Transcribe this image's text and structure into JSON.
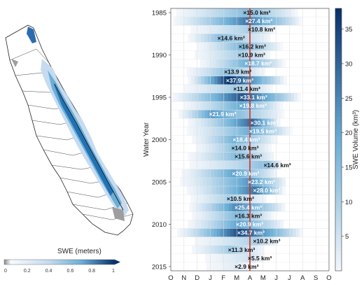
{
  "map_legend": {
    "title": "SWE (meters)",
    "ticks": [
      "0",
      "0.2",
      "0.4",
      "0.6",
      "0.8",
      "1"
    ]
  },
  "chart_data": {
    "type": "heatmap",
    "ylabel": "Water Year",
    "colorbar_label": "SWE Volume (km³)",
    "colorbar_ticks": [
      5,
      10,
      15,
      20,
      25,
      30,
      35
    ],
    "colorbar_range": [
      0,
      38
    ],
    "months": [
      "O",
      "N",
      "D",
      "J",
      "F",
      "M",
      "A",
      "M",
      "J",
      "J",
      "A",
      "S",
      "O"
    ],
    "year_ticks": [
      1985,
      1990,
      1995,
      2000,
      2005,
      2010,
      2015
    ],
    "year_range": [
      1985,
      2015
    ],
    "reference_line_month": "A",
    "colors": {
      "low": "#f4f7fb",
      "high": "#08306b",
      "ref_line": "#d7301f",
      "label_dark": "#111111",
      "label_light": "#ffffff"
    },
    "series": [
      {
        "year": 1985,
        "peak": 15.0,
        "peak_month": 5.65,
        "start": 0.4,
        "end": 9.5,
        "label": "×15.0 km³"
      },
      {
        "year": 1986,
        "peak": 27.4,
        "peak_month": 5.8,
        "start": 0.2,
        "end": 9.8,
        "label": "×27.4 km³"
      },
      {
        "year": 1987,
        "peak": 10.8,
        "peak_month": 6.0,
        "start": 1.5,
        "end": 7.8,
        "label": "×10.8 km³"
      },
      {
        "year": 1988,
        "peak": 14.6,
        "peak_month": 3.7,
        "start": 1.3,
        "end": 7.5,
        "label": "×14.6 km³"
      },
      {
        "year": 1989,
        "peak": 16.2,
        "peak_month": 5.3,
        "start": 2.0,
        "end": 8.3,
        "label": "×16.2 km³"
      },
      {
        "year": 1990,
        "peak": 10.9,
        "peak_month": 5.25,
        "start": 1.8,
        "end": 7.5,
        "label": "×10.9 km³"
      },
      {
        "year": 1991,
        "peak": 18.7,
        "peak_month": 5.75,
        "start": 2.2,
        "end": 8.5,
        "label": "×18.7 km³"
      },
      {
        "year": 1992,
        "peak": 13.9,
        "peak_month": 4.2,
        "start": 1.2,
        "end": 7.0,
        "label": "×13.9 km³"
      },
      {
        "year": 1993,
        "peak": 37.9,
        "peak_month": 4.35,
        "start": 1.3,
        "end": 8.6,
        "label": "×37.9 km³"
      },
      {
        "year": 1994,
        "peak": 11.4,
        "peak_month": 4.9,
        "start": 1.0,
        "end": 7.6,
        "label": "×11.4 km³"
      },
      {
        "year": 1995,
        "peak": 33.1,
        "peak_month": 5.4,
        "start": 0.1,
        "end": 9.7,
        "label": "×33.1 km³"
      },
      {
        "year": 1996,
        "peak": 19.8,
        "peak_month": 5.35,
        "start": 1.0,
        "end": 8.3,
        "label": "×19.8 km³"
      },
      {
        "year": 1997,
        "peak": 21.9,
        "peak_month": 3.05,
        "start": 0.6,
        "end": 8.4,
        "label": "×21.9 km³"
      },
      {
        "year": 1998,
        "peak": 30.1,
        "peak_month": 6.2,
        "start": 1.3,
        "end": 8.2,
        "label": "×30.1 km³"
      },
      {
        "year": 1999,
        "peak": 19.5,
        "peak_month": 6.1,
        "start": 1.2,
        "end": 9.0,
        "label": "×19.5 km³"
      },
      {
        "year": 2000,
        "peak": 18.4,
        "peak_month": 4.85,
        "start": 1.6,
        "end": 7.9,
        "label": "×18.4 km³"
      },
      {
        "year": 2001,
        "peak": 14.0,
        "peak_month": 4.75,
        "start": 1.9,
        "end": 7.5,
        "label": "×14.0 km³"
      },
      {
        "year": 2002,
        "peak": 15.6,
        "peak_month": 5.0,
        "start": 1.3,
        "end": 7.8,
        "label": "×15.6 km³"
      },
      {
        "year": 2003,
        "peak": 14.6,
        "peak_month": 7.2,
        "start": 1.4,
        "end": 8.4,
        "label": "×14.6 km³"
      },
      {
        "year": 2004,
        "peak": 20.9,
        "peak_month": 4.8,
        "start": 0.8,
        "end": 8.0,
        "label": "×20.9 km³"
      },
      {
        "year": 2005,
        "peak": 23.2,
        "peak_month": 6.0,
        "start": 0.7,
        "end": 8.7,
        "label": "×23.2 km³"
      },
      {
        "year": 2006,
        "peak": 28.0,
        "peak_month": 6.4,
        "start": 1.2,
        "end": 8.5,
        "label": "×28.0 km³"
      },
      {
        "year": 2007,
        "peak": 10.5,
        "peak_month": 4.4,
        "start": 1.5,
        "end": 7.2,
        "label": "×10.5 km³"
      },
      {
        "year": 2008,
        "peak": 25.4,
        "peak_month": 5.0,
        "start": 1.4,
        "end": 8.6,
        "label": "×25.4 km³"
      },
      {
        "year": 2009,
        "peak": 16.3,
        "peak_month": 5.0,
        "start": 1.6,
        "end": 7.7,
        "label": "×16.3 km³"
      },
      {
        "year": 2010,
        "peak": 20.9,
        "peak_month": 5.1,
        "start": 1.3,
        "end": 8.5,
        "label": "×20.9 km³"
      },
      {
        "year": 2011,
        "peak": 34.7,
        "peak_month": 5.2,
        "start": 0.5,
        "end": 9.9,
        "label": "×34.7 km³"
      },
      {
        "year": 2012,
        "peak": 10.2,
        "peak_month": 6.4,
        "start": 1.8,
        "end": 8.0,
        "label": "×10.2 km³"
      },
      {
        "year": 2013,
        "peak": 11.3,
        "peak_month": 4.5,
        "start": 1.6,
        "end": 7.0,
        "label": "×11.3 km³"
      },
      {
        "year": 2014,
        "peak": 5.5,
        "peak_month": 6.0,
        "start": 2.6,
        "end": 7.0,
        "label": "×5.5 km³"
      },
      {
        "year": 2015,
        "peak": 2.9,
        "peak_month": 5.0,
        "start": 2.7,
        "end": 6.3,
        "label": "×2.9 km³"
      }
    ]
  }
}
